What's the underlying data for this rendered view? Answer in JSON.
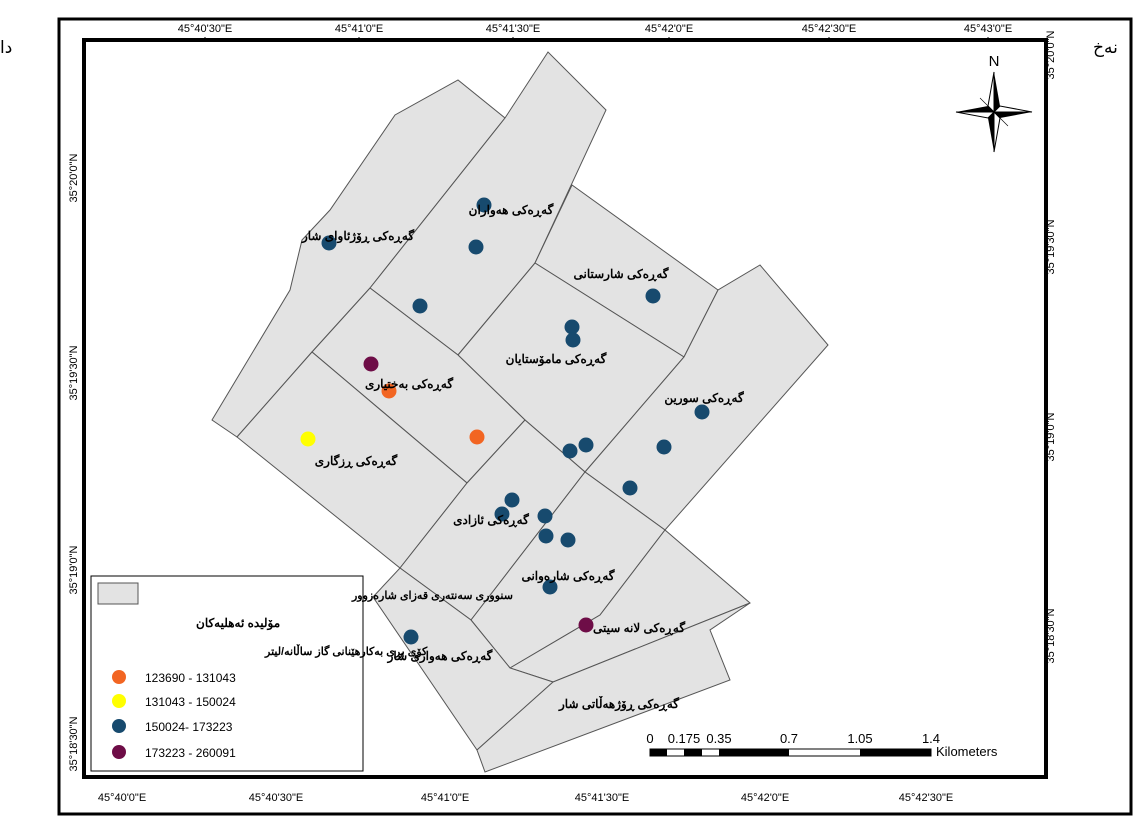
{
  "map": {
    "colors": {
      "boundary_fill": "#e3e3e3",
      "boundary_stroke": "#555555",
      "frame": "#000000",
      "class_1": "#f26522",
      "class_2": "#ffff00",
      "class_3": "#174a6e",
      "class_4": "#6e0d47"
    },
    "cut_text_left": "دا",
    "cut_text_right": "نەخ",
    "top_ticks": [
      "45°40'30\"E",
      "45°41'0\"E",
      "45°41'30\"E",
      "45°42'0\"E",
      "45°42'30\"E",
      "45°43'0\"E"
    ],
    "bottom_ticks": [
      "45°40'0\"E",
      "45°40'30\"E",
      "45°41'0\"E",
      "45°41'30\"E",
      "45°42'0\"E",
      "45°42'30\"E"
    ],
    "left_ticks": [
      "35°20'0\"N",
      "35°19'30\"N",
      "35°19'0\"N",
      "35°18'30\"N"
    ],
    "right_ticks": [
      "35°20'0\"N",
      "35°19'30\"N",
      "35°19'0\"N",
      "35°18'30\"N"
    ],
    "north_label": "N",
    "districts": [
      "گەڕەکی هەواران",
      "گەڕەکی ڕۆژئاوای شار",
      "گەڕەکی شارستانی",
      "گەڕەکی مامۆستایان",
      "گەڕەکی بەختیاری",
      "گەڕەکی سورین",
      "گەڕەکی ڕزگاری",
      "گەڕەکی ئازادی",
      "گەڕەکی شارەوانی",
      "گەڕەکی لانە سیتی",
      "گەڕەکی هەواری شار",
      "گەڕەکی ڕۆژهەڵاتی شار"
    ],
    "points": [
      {
        "cls": 3
      },
      {
        "cls": 3
      },
      {
        "cls": 3
      },
      {
        "cls": 3
      },
      {
        "cls": 3
      },
      {
        "cls": 3
      },
      {
        "cls": 3
      },
      {
        "cls": 3
      },
      {
        "cls": 3
      },
      {
        "cls": 3
      },
      {
        "cls": 3
      },
      {
        "cls": 3
      },
      {
        "cls": 3
      },
      {
        "cls": 3
      },
      {
        "cls": 3
      },
      {
        "cls": 3
      },
      {
        "cls": 3
      },
      {
        "cls": 3
      },
      {
        "cls": 3
      },
      {
        "cls": 4
      },
      {
        "cls": 4
      },
      {
        "cls": 1
      },
      {
        "cls": 1
      },
      {
        "cls": 2
      }
    ],
    "legend": {
      "boundary_label": "سنووری سەنتەری قەزای شارەزوور",
      "generators_title": "مۆلیدە ئەهلیەکان",
      "usage_title": "کۆی بڕی بەکارهێنانی گاز ساڵانە/لیتر",
      "classes": [
        {
          "label": "123690 - 131043",
          "color": "#f26522"
        },
        {
          "label": "131043 - 150024",
          "color": "#ffff00"
        },
        {
          "label": "150024- 173223",
          "color": "#174a6e"
        },
        {
          "label": "173223 - 260091",
          "color": "#6e0d47"
        }
      ]
    },
    "scale_bar": {
      "labels": [
        "0",
        "0.175",
        "0.35",
        "0.7",
        "1.05",
        "1.4"
      ],
      "unit": "Kilometers"
    }
  }
}
